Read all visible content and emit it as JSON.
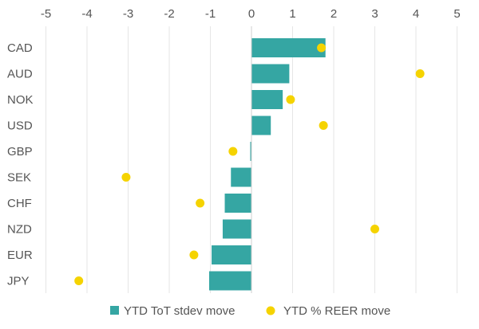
{
  "chart_data": {
    "type": "bar",
    "orientation": "horizontal",
    "categories": [
      "CAD",
      "AUD",
      "NOK",
      "USD",
      "GBP",
      "SEK",
      "CHF",
      "NZD",
      "EUR",
      "JPY"
    ],
    "series": [
      {
        "name": "YTD ToT stdev move",
        "kind": "bar",
        "color": "#35a6a3",
        "values": [
          1.8,
          0.92,
          0.76,
          0.47,
          -0.03,
          -0.5,
          -0.65,
          -0.7,
          -0.97,
          -1.03
        ]
      },
      {
        "name": "YTD % REER move",
        "kind": "point",
        "color": "#f5d300",
        "values": [
          1.7,
          4.1,
          0.95,
          1.75,
          -0.45,
          -3.05,
          -1.25,
          3.0,
          -1.4,
          -4.2
        ]
      }
    ],
    "xlim": [
      -5,
      5
    ],
    "xticks": [
      -5,
      -4,
      -3,
      -2,
      -1,
      0,
      1,
      2,
      3,
      4,
      5
    ],
    "xtick_labels": [
      "-5",
      "-4",
      "-3",
      "-2",
      "-1",
      "0",
      "1",
      "2",
      "3",
      "4",
      "5"
    ],
    "axis_position": "top",
    "grid": true,
    "legend_position": "bottom"
  }
}
